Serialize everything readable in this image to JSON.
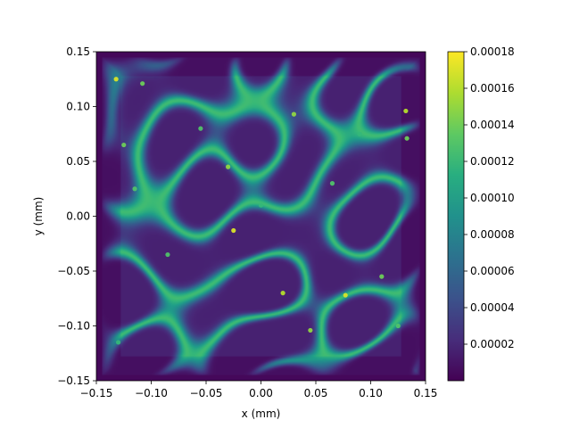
{
  "chart_data": {
    "type": "heatmap",
    "title": "",
    "xlabel": "x (mm)",
    "ylabel": "y (mm)",
    "xlim": [
      -0.15,
      0.15
    ],
    "ylim": [
      -0.15,
      0.15
    ],
    "x_ticks": [
      -0.15,
      -0.1,
      -0.05,
      0.0,
      0.05,
      0.1,
      0.15
    ],
    "x_tick_labels": [
      "−0.15",
      "−0.10",
      "−0.05",
      "0.00",
      "0.05",
      "0.10",
      "0.15"
    ],
    "y_ticks": [
      -0.15,
      -0.1,
      -0.05,
      0.0,
      0.05,
      0.1,
      0.15
    ],
    "y_tick_labels": [
      "−0.15",
      "−0.10",
      "−0.05",
      "0.00",
      "0.05",
      "0.10",
      "0.15"
    ],
    "colormap": "viridis",
    "colorbar": {
      "min": 0.0,
      "max": 0.00018,
      "ticks": [
        2e-05,
        4e-05,
        6e-05,
        8e-05,
        0.0001,
        0.00012,
        0.00014,
        0.00016,
        0.00018
      ],
      "tick_labels": [
        "0.00002",
        "0.00004",
        "0.00006",
        "0.00008",
        "0.00010",
        "0.00012",
        "0.00014",
        "0.00016",
        "0.00018"
      ]
    },
    "grid": false,
    "pattern": "speckle-like network of bright filaments inside a square aperture spanning about -0.14 to 0.14 mm, dark background outside",
    "hotspots": [
      {
        "x": -0.132,
        "y": 0.125,
        "value": 0.00017
      },
      {
        "x": -0.108,
        "y": 0.121,
        "value": 0.00014
      },
      {
        "x": 0.132,
        "y": 0.096,
        "value": 0.00016
      },
      {
        "x": -0.125,
        "y": 0.065,
        "value": 0.00014
      },
      {
        "x": 0.133,
        "y": 0.071,
        "value": 0.00014
      },
      {
        "x": 0.03,
        "y": 0.093,
        "value": 0.00015
      },
      {
        "x": -0.03,
        "y": 0.045,
        "value": 0.00015
      },
      {
        "x": -0.025,
        "y": -0.013,
        "value": 0.00017
      },
      {
        "x": -0.115,
        "y": 0.025,
        "value": 0.00013
      },
      {
        "x": 0.02,
        "y": -0.07,
        "value": 0.00016
      },
      {
        "x": 0.077,
        "y": -0.072,
        "value": 0.00017
      },
      {
        "x": 0.045,
        "y": -0.104,
        "value": 0.00015
      },
      {
        "x": -0.13,
        "y": -0.115,
        "value": 0.00012
      },
      {
        "x": 0.11,
        "y": -0.055,
        "value": 0.00014
      },
      {
        "x": 0.125,
        "y": -0.1,
        "value": 0.00013
      },
      {
        "x": 0.065,
        "y": 0.03,
        "value": 0.00013
      },
      {
        "x": -0.085,
        "y": -0.035,
        "value": 0.00013
      },
      {
        "x": 0.09,
        "y": 0.075,
        "value": 0.00012
      },
      {
        "x": -0.055,
        "y": 0.08,
        "value": 0.00013
      },
      {
        "x": 0.0,
        "y": 0.01,
        "value": 0.00012
      }
    ]
  }
}
